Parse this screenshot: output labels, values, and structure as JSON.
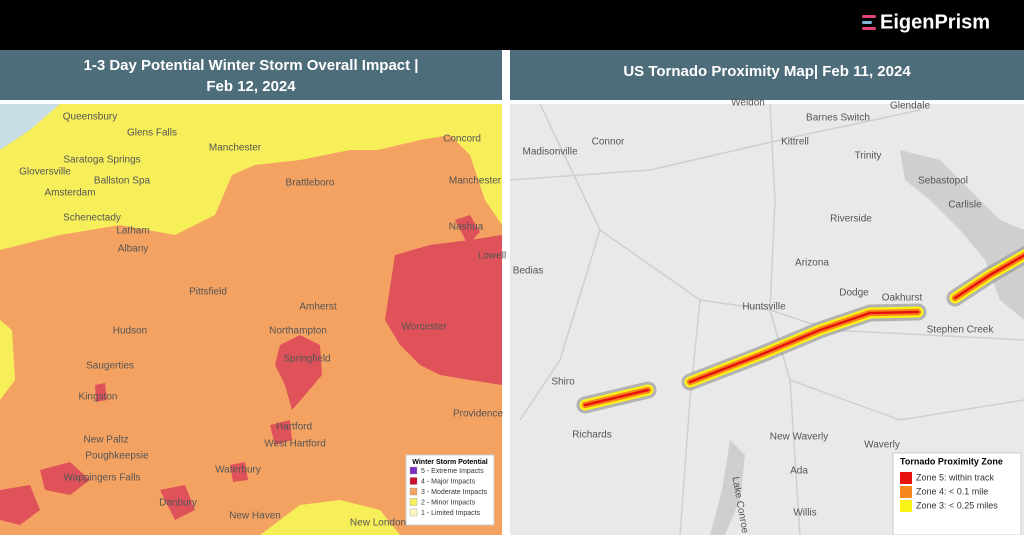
{
  "brand": "EigenPrism",
  "left": {
    "title": "1-3 Day Potential Winter Storm Overall Impact | Feb 12, 2024",
    "legend": {
      "title": "Winter Storm Potential",
      "items": [
        {
          "label": "5 - Extreme Impacts",
          "color": "#7b2fbf"
        },
        {
          "label": "4 - Major Impacts",
          "color": "#c8102e"
        },
        {
          "label": "3 - Moderate Impacts",
          "color": "#f4a261"
        },
        {
          "label": "2 - Minor Impacts",
          "color": "#f6ef5a"
        },
        {
          "label": "1 - Limited Impacts",
          "color": "#fdf6c0"
        }
      ]
    },
    "places": [
      "Queensbury",
      "Glens Falls",
      "Manchester",
      "Concord",
      "Saratoga Springs",
      "Gloversville",
      "Ballston Spa",
      "Amsterdam",
      "Schenectady",
      "Latham",
      "Brattleboro",
      "Manchester",
      "Nashua",
      "Albany",
      "Lowell",
      "Pittsfield",
      "Amherst",
      "Northampton",
      "Worcester",
      "Hudson",
      "Springfield",
      "Saugerties",
      "Kingston",
      "Providence",
      "Hartford",
      "West Hartford",
      "New Paltz",
      "Poughkeepsie",
      "Waterbury",
      "Wappingers Falls",
      "Danbury",
      "New Haven",
      "New London"
    ]
  },
  "right": {
    "title": "US Tornado Proximity Map| Feb 11, 2024",
    "legend": {
      "title": "Tornado Proximity Zone",
      "items": [
        {
          "label": "Zone 5: within track",
          "color": "#e8120c"
        },
        {
          "label": "Zone 4: < 0.1 mile",
          "color": "#f7861c"
        },
        {
          "label": "Zone 3: < 0.25 miles",
          "color": "#fbf315"
        }
      ]
    },
    "places": [
      "Weldon",
      "Glendale",
      "Connor",
      "Madisonville",
      "Barnes Switch",
      "Kittrell",
      "Trinity",
      "Sebastopol",
      "Carlisle",
      "Riverside",
      "Arizona",
      "Bedias",
      "Dodge",
      "Oakhurst",
      "Huntsville",
      "Stephen Creek",
      "Shiro",
      "Richards",
      "New Waverly",
      "Waverly",
      "Ada",
      "Willis",
      "Lake Conroe"
    ]
  }
}
